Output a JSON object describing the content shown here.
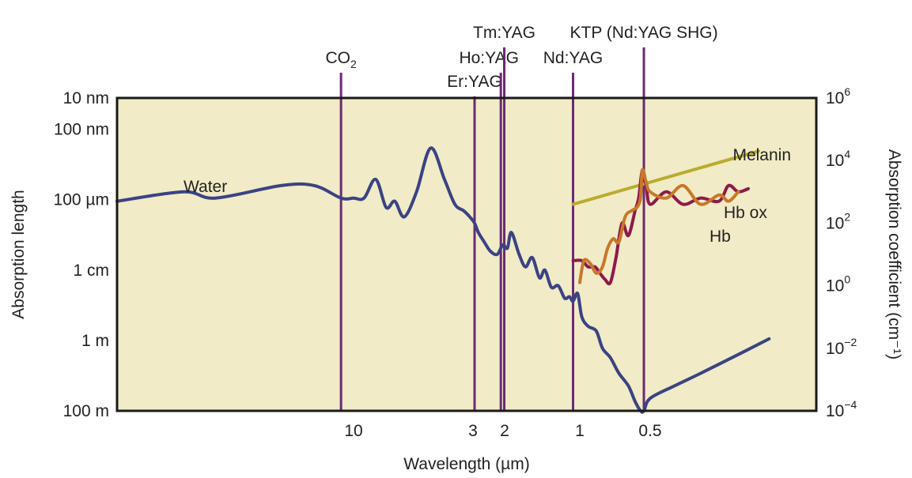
{
  "chart_data": {
    "type": "line",
    "xlabel": "Wavelength (µm)",
    "ylabel_left": "Absorption length",
    "ylabel_right": "Absorption coefficient (cm⁻¹)",
    "x_ticks": [
      {
        "value": 10,
        "label": "10"
      },
      {
        "value": 3,
        "label": "3"
      },
      {
        "value": 2,
        "label": "2"
      },
      {
        "value": 1,
        "label": "1"
      },
      {
        "value": 0.5,
        "label": "0.5"
      }
    ],
    "xlim_log_wavelength_um": [
      30,
      0.35
    ],
    "yscale": "log",
    "ylim_absorption_coefficient_per_cm": [
      0.0001,
      1000000
    ],
    "y_ticks_left": [
      {
        "exp": 6,
        "label": "10 nm"
      },
      {
        "exp": 5,
        "label": "100 nm"
      },
      {
        "exp": 2.75,
        "label": "100 µm"
      },
      {
        "exp": 0.5,
        "label": "1 cm"
      },
      {
        "exp": -1.75,
        "label": "1 m"
      },
      {
        "exp": -4,
        "label": "100 m"
      }
    ],
    "y_ticks_right": [
      {
        "exp": 6,
        "base": "10",
        "power": "6"
      },
      {
        "exp": 4,
        "base": "10",
        "power": "4"
      },
      {
        "exp": 2,
        "base": "10",
        "power": "2"
      },
      {
        "exp": 0,
        "base": "10",
        "power": "0"
      },
      {
        "exp": -2,
        "base": "10",
        "power": "−2"
      },
      {
        "exp": -4,
        "base": "10",
        "power": "−4"
      }
    ],
    "lasers": [
      {
        "name": "CO",
        "sub": "2",
        "wavelength_um": 10.6
      },
      {
        "name": "Er:YAG",
        "sub": "",
        "wavelength_um": 2.94
      },
      {
        "name": "Ho:YAG",
        "sub": "",
        "wavelength_um": 2.1
      },
      {
        "name": "Tm:YAG",
        "sub": "",
        "wavelength_um": 2.01
      },
      {
        "name": "Nd:YAG",
        "sub": "",
        "wavelength_um": 1.064
      },
      {
        "name": "KTP (Nd:YAG SHG)",
        "sub": "",
        "wavelength_um": 0.532
      }
    ],
    "series": [
      {
        "name": "Water",
        "color": "#3a4383",
        "x": [
          30,
          22,
          19,
          14,
          12,
          10.6,
          10,
          9,
          8,
          7.2,
          6.6,
          6.0,
          5.3,
          4.6,
          4.0,
          3.6,
          3.3,
          3.1,
          2.94,
          2.8,
          2.6,
          2.4,
          2.2,
          2.05,
          1.95,
          1.88,
          1.75,
          1.65,
          1.55,
          1.45,
          1.38,
          1.3,
          1.22,
          1.15,
          1.1,
          1.064,
          1.02,
          0.98,
          0.92,
          0.85,
          0.8,
          0.74,
          0.68,
          0.62,
          0.58,
          0.55,
          0.532,
          0.5,
          0.47,
          0.44,
          0.4,
          0.37
        ],
        "y": [
          2.7,
          3.0,
          2.8,
          3.2,
          3.2,
          2.8,
          2.8,
          2.8,
          3.4,
          2.5,
          2.7,
          2.2,
          3.0,
          4.4,
          3.4,
          2.6,
          2.4,
          2.2,
          2.0,
          1.7,
          1.4,
          1.1,
          1.0,
          1.3,
          1.2,
          1.7,
          1.0,
          0.6,
          0.9,
          0.25,
          0.5,
          -0.05,
          0.0,
          -0.4,
          -0.35,
          -0.5,
          -0.25,
          -1.0,
          -1.3,
          -1.45,
          -2.0,
          -2.3,
          -2.8,
          -3.2,
          -3.7,
          -4.0,
          -4.0,
          -3.6,
          -3.2,
          -2.8,
          -2.2,
          -1.7
        ]
      },
      {
        "name": "Melanin",
        "color": "#b8ad2c",
        "x": [
          1.064,
          0.38
        ],
        "y": [
          2.6,
          4.3
        ]
      },
      {
        "name": "Hb ox",
        "color": "#8e1a4a",
        "x": [
          1.064,
          0.98,
          0.92,
          0.86,
          0.82,
          0.78,
          0.74,
          0.7,
          0.66,
          0.62,
          0.58,
          0.56,
          0.54,
          0.52,
          0.5,
          0.48,
          0.46,
          0.44,
          0.42,
          0.41,
          0.4,
          0.39
        ],
        "y": [
          0.8,
          0.8,
          0.6,
          0.6,
          0.4,
          0.2,
          0.1,
          0.9,
          2.0,
          1.6,
          2.4,
          2.8,
          3.7,
          3.2,
          2.6,
          3.0,
          2.6,
          2.8,
          2.7,
          3.2,
          3.0,
          3.1
        ]
      },
      {
        "name": "Hb",
        "color": "#c8782a",
        "x": [
          1.0,
          0.96,
          0.9,
          0.85,
          0.8,
          0.76,
          0.72,
          0.68,
          0.64,
          0.6,
          0.57,
          0.55,
          0.54,
          0.52,
          0.5,
          0.48,
          0.46,
          0.44,
          0.42,
          0.41,
          0.4
        ],
        "y": [
          0.1,
          0.8,
          0.7,
          0.4,
          0.6,
          1.2,
          1.5,
          1.4,
          2.2,
          2.4,
          2.5,
          2.8,
          3.7,
          3.3,
          3.0,
          2.8,
          3.2,
          2.6,
          2.9,
          2.7,
          3.0
        ]
      }
    ],
    "series_labels": [
      "Water",
      "Melanin",
      "Hb ox",
      "Hb"
    ],
    "grid": false,
    "colors": {
      "plot_background": "#f1ebc7",
      "laser_lines": "#6b2a73",
      "frame": "#1a1a1a"
    }
  }
}
